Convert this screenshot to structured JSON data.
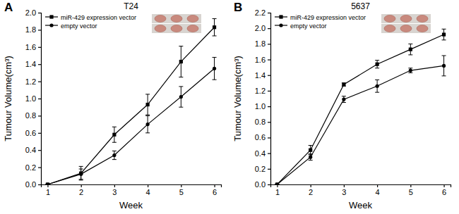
{
  "chart_data": [
    {
      "type": "line",
      "panel_label": "A",
      "title": "T24",
      "x_label": "Week",
      "y_label": "Tumour Volume(cm³)",
      "x": [
        1,
        2,
        3,
        4,
        5,
        6
      ],
      "xlim": [
        0.8,
        6.2
      ],
      "xticks": [
        1,
        2,
        3,
        4,
        5,
        6
      ],
      "ylim": [
        0,
        2.0
      ],
      "yticks": [
        {
          "value": 0,
          "label": "0.0"
        },
        0.2,
        0.4,
        0.6,
        0.8,
        {
          "value": 1,
          "label": "1.0"
        },
        1.2,
        1.4,
        1.6,
        1.8,
        {
          "value": 2,
          "label": "2.0"
        }
      ],
      "legend": "upper left",
      "series": [
        {
          "name": "miR-429 expression vector",
          "color": "#000000",
          "marker": "square",
          "values": [
            0.0,
            0.13,
            0.58,
            0.93,
            1.43,
            1.83
          ],
          "errors": [
            0,
            0.08,
            0.09,
            0.12,
            0.18,
            0.1
          ]
        },
        {
          "name": "empty vector",
          "color": "#000000",
          "marker": "circle",
          "values": [
            0.0,
            0.12,
            0.34,
            0.7,
            1.02,
            1.35
          ],
          "errors": [
            0,
            0.06,
            0.05,
            0.1,
            0.12,
            0.13
          ]
        }
      ]
    },
    {
      "type": "line",
      "panel_label": "B",
      "title": "5637",
      "x_label": "Week",
      "y_label": "Tumour Volume(cm³)",
      "x": [
        1,
        2,
        3,
        4,
        5,
        6
      ],
      "xlim": [
        0.8,
        6.2
      ],
      "xticks": [
        1,
        2,
        3,
        4,
        5,
        6
      ],
      "ylim": [
        0,
        2.2
      ],
      "yticks": [
        {
          "value": 0,
          "label": "0.0"
        },
        0.2,
        0.4,
        0.6,
        0.8,
        {
          "value": 1,
          "label": "1.0"
        },
        1.2,
        1.4,
        1.6,
        1.8,
        {
          "value": 2,
          "label": "2.0"
        },
        2.2
      ],
      "legend": "upper left",
      "series": [
        {
          "name": "miR-429 expression vector",
          "color": "#000000",
          "marker": "square",
          "values": [
            0.0,
            0.44,
            1.28,
            1.54,
            1.73,
            1.92
          ],
          "errors": [
            0,
            0.06,
            0.02,
            0.05,
            0.07,
            0.07
          ]
        },
        {
          "name": "empty vector",
          "color": "#000000",
          "marker": "circle",
          "values": [
            0.0,
            0.35,
            1.09,
            1.26,
            1.46,
            1.52
          ],
          "errors": [
            0,
            0.04,
            0.04,
            0.08,
            0.03,
            0.13
          ]
        }
      ]
    }
  ]
}
